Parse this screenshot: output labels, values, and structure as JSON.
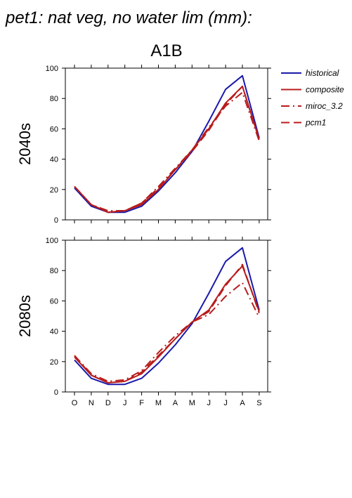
{
  "title": "pet1: nat veg, no water lim (mm):",
  "subtitle": "A1B",
  "colors": {
    "historical": "#1a1aaa",
    "composite": "#b81c1c",
    "miroc": "#b81c1c",
    "pcm1": "#b81c1c",
    "axis": "#000000"
  },
  "chart_data": [
    {
      "type": "line",
      "panel_label": "2040s",
      "categories": [
        "O",
        "N",
        "D",
        "J",
        "F",
        "M",
        "A",
        "M",
        "J",
        "J",
        "A",
        "S"
      ],
      "ylim": [
        0,
        100
      ],
      "yticks": [
        0,
        20,
        40,
        60,
        80,
        100
      ],
      "grid": false,
      "series": [
        {
          "name": "historical",
          "style": "solid",
          "color": "#1a1aaa",
          "values": [
            21,
            9,
            5,
            5,
            9,
            19,
            31,
            45,
            65,
            86,
            95,
            54
          ]
        },
        {
          "name": "composite",
          "style": "solid",
          "color": "#b81c1c",
          "values": [
            22,
            10,
            5,
            6,
            10,
            20,
            33,
            46,
            60,
            77,
            88,
            53
          ]
        },
        {
          "name": "miroc_3.2",
          "style": "dashdot",
          "color": "#b81c1c",
          "values": [
            22,
            10,
            6,
            6,
            11,
            22,
            34,
            46,
            61,
            75,
            84,
            52
          ]
        },
        {
          "name": "pcm1",
          "style": "dashed",
          "color": "#b81c1c",
          "values": [
            22,
            10,
            5,
            6,
            11,
            21,
            33,
            45,
            59,
            76,
            88,
            53
          ]
        }
      ]
    },
    {
      "type": "line",
      "panel_label": "2080s",
      "categories": [
        "O",
        "N",
        "D",
        "J",
        "F",
        "M",
        "A",
        "M",
        "J",
        "J",
        "A",
        "S"
      ],
      "ylim": [
        0,
        100
      ],
      "yticks": [
        0,
        20,
        40,
        60,
        80,
        100
      ],
      "grid": false,
      "series": [
        {
          "name": "historical",
          "style": "solid",
          "color": "#1a1aaa",
          "values": [
            21,
            9,
            5,
            5,
            9,
            19,
            31,
            45,
            65,
            86,
            95,
            54
          ]
        },
        {
          "name": "composite",
          "style": "solid",
          "color": "#b81c1c",
          "values": [
            23,
            11,
            6,
            7,
            12,
            23,
            35,
            46,
            54,
            71,
            83,
            53
          ]
        },
        {
          "name": "miroc_3.2",
          "style": "dashdot",
          "color": "#b81c1c",
          "values": [
            24,
            12,
            7,
            8,
            14,
            26,
            37,
            46,
            51,
            63,
            72,
            49
          ]
        },
        {
          "name": "pcm1",
          "style": "dashed",
          "color": "#b81c1c",
          "values": [
            24,
            11,
            6,
            7,
            13,
            24,
            35,
            46,
            53,
            70,
            84,
            52
          ]
        }
      ]
    }
  ],
  "legend": {
    "placement": "right",
    "entries": [
      {
        "label": "historical",
        "style": "solid",
        "color": "#1a1aaa"
      },
      {
        "label": "composite",
        "style": "solid",
        "color": "#b81c1c"
      },
      {
        "label": "miroc_3.2",
        "style": "dashdot",
        "color": "#b81c1c"
      },
      {
        "label": "pcm1",
        "style": "dashed",
        "color": "#b81c1c"
      }
    ]
  }
}
